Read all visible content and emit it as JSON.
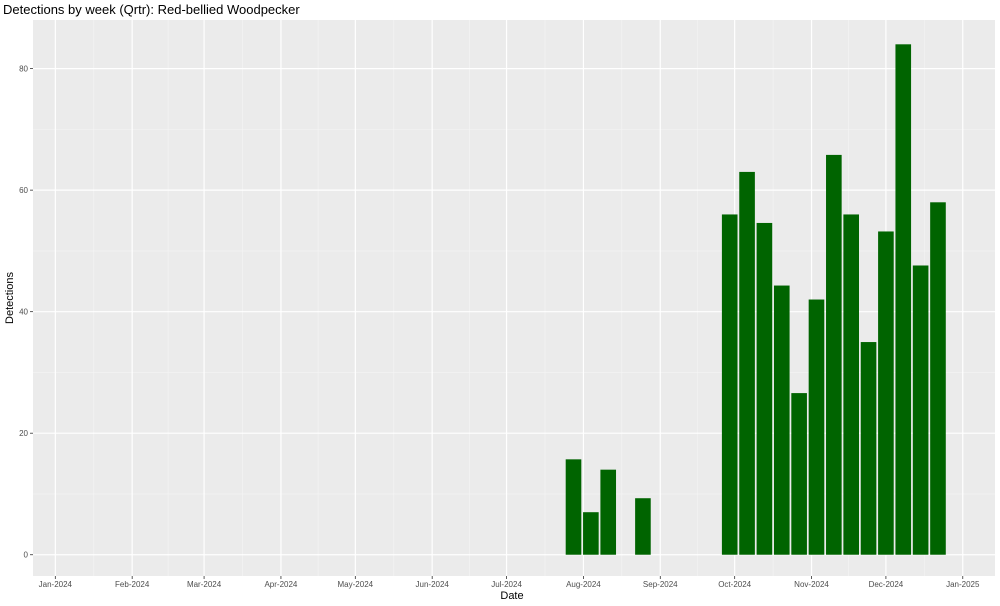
{
  "chart_data": {
    "type": "bar",
    "title": "Detections by week (Qrtr): Red-bellied Woodpecker",
    "xlabel": "Date",
    "ylabel": "Detections",
    "x_ticks": [
      "Jan-2024",
      "Feb-2024",
      "Mar-2024",
      "Apr-2024",
      "May-2024",
      "Jun-2024",
      "Jul-2024",
      "Aug-2024",
      "Sep-2024",
      "Oct-2024",
      "Nov-2024",
      "Dec-2024",
      "Jan-2025"
    ],
    "y_ticks": [
      0,
      20,
      40,
      60,
      80
    ],
    "ylim": [
      -3.5,
      88
    ],
    "xlim": [
      "2023-12-23",
      "2025-01-14"
    ],
    "bar_color": "#006400",
    "panel_color": "#ebebeb",
    "grid": true,
    "series": [
      {
        "points": [
          {
            "week": "2024-07-28",
            "value": 15.7
          },
          {
            "week": "2024-08-04",
            "value": 7.0
          },
          {
            "week": "2024-08-11",
            "value": 14.0
          },
          {
            "week": "2024-08-25",
            "value": 9.3
          },
          {
            "week": "2024-09-29",
            "value": 56.0
          },
          {
            "week": "2024-10-06",
            "value": 63.0
          },
          {
            "week": "2024-10-13",
            "value": 54.6
          },
          {
            "week": "2024-10-20",
            "value": 44.3
          },
          {
            "week": "2024-10-27",
            "value": 26.6
          },
          {
            "week": "2024-11-03",
            "value": 42.0
          },
          {
            "week": "2024-11-10",
            "value": 65.8
          },
          {
            "week": "2024-11-17",
            "value": 56.0
          },
          {
            "week": "2024-11-24",
            "value": 35.0
          },
          {
            "week": "2024-12-01",
            "value": 53.2
          },
          {
            "week": "2024-12-08",
            "value": 84.0
          },
          {
            "week": "2024-12-15",
            "value": 47.6
          },
          {
            "week": "2024-12-22",
            "value": 58.0
          }
        ]
      }
    ]
  }
}
